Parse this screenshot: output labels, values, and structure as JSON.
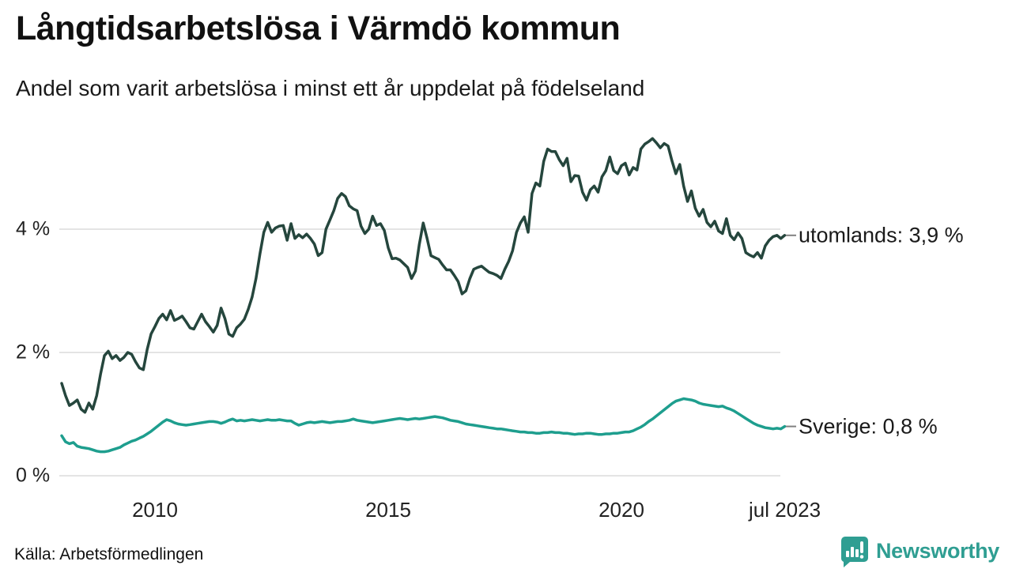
{
  "header": {
    "title": "Långtidsarbetslösa i Värmdö kommun",
    "subtitle": "Andel som varit arbetslösa i minst ett år uppdelat på födelseland"
  },
  "footer": {
    "source": "Källa: Arbetsförmedlingen",
    "brand": "Newsworthy",
    "brand_color": "#2f9e92",
    "brand_icon": "bar-chart-speech-bubble-icon"
  },
  "chart_data": {
    "type": "line",
    "title": "Långtidsarbetslösa i Värmdö kommun",
    "subtitle": "Andel som varit arbetslösa i minst ett år uppdelat på födelseland",
    "grid": true,
    "x_unit": "months",
    "x_start_year": 2008,
    "x_start_month": 1,
    "points_per_year": 12,
    "x_end_label": "jul 2023",
    "x_axis": {
      "ticks": [
        {
          "label": "2010",
          "t": 2010
        },
        {
          "label": "2015",
          "t": 2015
        },
        {
          "label": "2020",
          "t": 2020
        },
        {
          "label": "jul 2023",
          "t": 2023.5
        }
      ]
    },
    "y_axis": {
      "unit": "%",
      "range": [
        0,
        5.6
      ],
      "ticks": [
        {
          "label": "0 %",
          "v": 0
        },
        {
          "label": "2 %",
          "v": 2
        },
        {
          "label": "4 %",
          "v": 4
        }
      ],
      "gridline_color": "#e4e4e4"
    },
    "legend_position": "end-of-line-labels-right",
    "series": [
      {
        "name": "utomlands",
        "end_label": "utomlands: 3,9 %",
        "end_value_text": "3,9 %",
        "color": "#25463d",
        "values": [
          1.5,
          1.3,
          1.14,
          1.18,
          1.23,
          1.08,
          1.03,
          1.18,
          1.08,
          1.3,
          1.65,
          1.95,
          2.02,
          1.9,
          1.95,
          1.87,
          1.92,
          2.0,
          1.97,
          1.85,
          1.75,
          1.72,
          2.05,
          2.3,
          2.42,
          2.55,
          2.62,
          2.53,
          2.68,
          2.52,
          2.55,
          2.59,
          2.5,
          2.4,
          2.38,
          2.5,
          2.62,
          2.5,
          2.42,
          2.33,
          2.44,
          2.72,
          2.55,
          2.3,
          2.26,
          2.4,
          2.46,
          2.54,
          2.7,
          2.9,
          3.2,
          3.6,
          3.95,
          4.11,
          3.95,
          4.02,
          4.05,
          4.06,
          3.82,
          4.09,
          3.85,
          3.91,
          3.86,
          3.92,
          3.85,
          3.76,
          3.57,
          3.62,
          4.0,
          4.15,
          4.3,
          4.5,
          4.58,
          4.53,
          4.38,
          4.33,
          4.3,
          4.05,
          3.93,
          4.0,
          4.21,
          4.06,
          4.09,
          3.98,
          3.7,
          3.52,
          3.53,
          3.5,
          3.44,
          3.38,
          3.2,
          3.32,
          3.75,
          4.1,
          3.85,
          3.57,
          3.54,
          3.51,
          3.42,
          3.34,
          3.34,
          3.25,
          3.15,
          2.95,
          3.0,
          3.2,
          3.35,
          3.38,
          3.4,
          3.35,
          3.3,
          3.28,
          3.25,
          3.2,
          3.35,
          3.48,
          3.65,
          3.95,
          4.1,
          4.2,
          3.95,
          4.58,
          4.75,
          4.7,
          5.1,
          5.3,
          5.26,
          5.26,
          5.13,
          5.03,
          5.15,
          4.77,
          4.87,
          4.86,
          4.6,
          4.47,
          4.64,
          4.7,
          4.6,
          4.85,
          4.95,
          5.17,
          4.95,
          4.9,
          5.03,
          5.07,
          4.88,
          5.0,
          4.96,
          5.3,
          5.38,
          5.42,
          5.47,
          5.4,
          5.32,
          5.39,
          5.35,
          5.11,
          4.9,
          5.05,
          4.7,
          4.45,
          4.62,
          4.34,
          4.21,
          4.32,
          4.11,
          4.04,
          4.13,
          3.97,
          3.93,
          4.17,
          3.9,
          3.83,
          3.94,
          3.85,
          3.62,
          3.58,
          3.55,
          3.62,
          3.53,
          3.73,
          3.82,
          3.88,
          3.9,
          3.85,
          3.9
        ]
      },
      {
        "name": "Sverige",
        "end_label": "Sverige: 0,8 %",
        "end_value_text": "0,8 %",
        "color": "#1e9e8e",
        "values": [
          0.65,
          0.55,
          0.52,
          0.54,
          0.48,
          0.46,
          0.45,
          0.44,
          0.42,
          0.4,
          0.39,
          0.39,
          0.4,
          0.42,
          0.44,
          0.46,
          0.5,
          0.53,
          0.56,
          0.58,
          0.61,
          0.64,
          0.68,
          0.72,
          0.77,
          0.82,
          0.87,
          0.91,
          0.89,
          0.86,
          0.84,
          0.83,
          0.82,
          0.83,
          0.84,
          0.85,
          0.86,
          0.87,
          0.88,
          0.88,
          0.87,
          0.85,
          0.87,
          0.9,
          0.92,
          0.89,
          0.9,
          0.89,
          0.9,
          0.91,
          0.9,
          0.89,
          0.9,
          0.91,
          0.9,
          0.9,
          0.91,
          0.9,
          0.89,
          0.89,
          0.85,
          0.82,
          0.84,
          0.86,
          0.87,
          0.86,
          0.87,
          0.88,
          0.87,
          0.86,
          0.87,
          0.88,
          0.88,
          0.89,
          0.9,
          0.92,
          0.9,
          0.89,
          0.88,
          0.87,
          0.86,
          0.87,
          0.88,
          0.89,
          0.9,
          0.91,
          0.92,
          0.93,
          0.92,
          0.91,
          0.92,
          0.93,
          0.92,
          0.93,
          0.94,
          0.95,
          0.96,
          0.95,
          0.94,
          0.92,
          0.9,
          0.89,
          0.88,
          0.86,
          0.84,
          0.83,
          0.82,
          0.81,
          0.8,
          0.79,
          0.78,
          0.77,
          0.76,
          0.76,
          0.75,
          0.74,
          0.73,
          0.72,
          0.71,
          0.71,
          0.7,
          0.7,
          0.69,
          0.69,
          0.7,
          0.7,
          0.71,
          0.7,
          0.7,
          0.69,
          0.69,
          0.68,
          0.67,
          0.68,
          0.68,
          0.69,
          0.69,
          0.68,
          0.67,
          0.67,
          0.68,
          0.68,
          0.69,
          0.69,
          0.7,
          0.71,
          0.71,
          0.73,
          0.76,
          0.79,
          0.83,
          0.88,
          0.92,
          0.97,
          1.02,
          1.07,
          1.12,
          1.17,
          1.21,
          1.23,
          1.25,
          1.24,
          1.23,
          1.21,
          1.18,
          1.16,
          1.15,
          1.14,
          1.13,
          1.12,
          1.13,
          1.1,
          1.08,
          1.05,
          1.01,
          0.97,
          0.93,
          0.89,
          0.85,
          0.82,
          0.8,
          0.78,
          0.77,
          0.76,
          0.77,
          0.76,
          0.8
        ]
      }
    ]
  }
}
